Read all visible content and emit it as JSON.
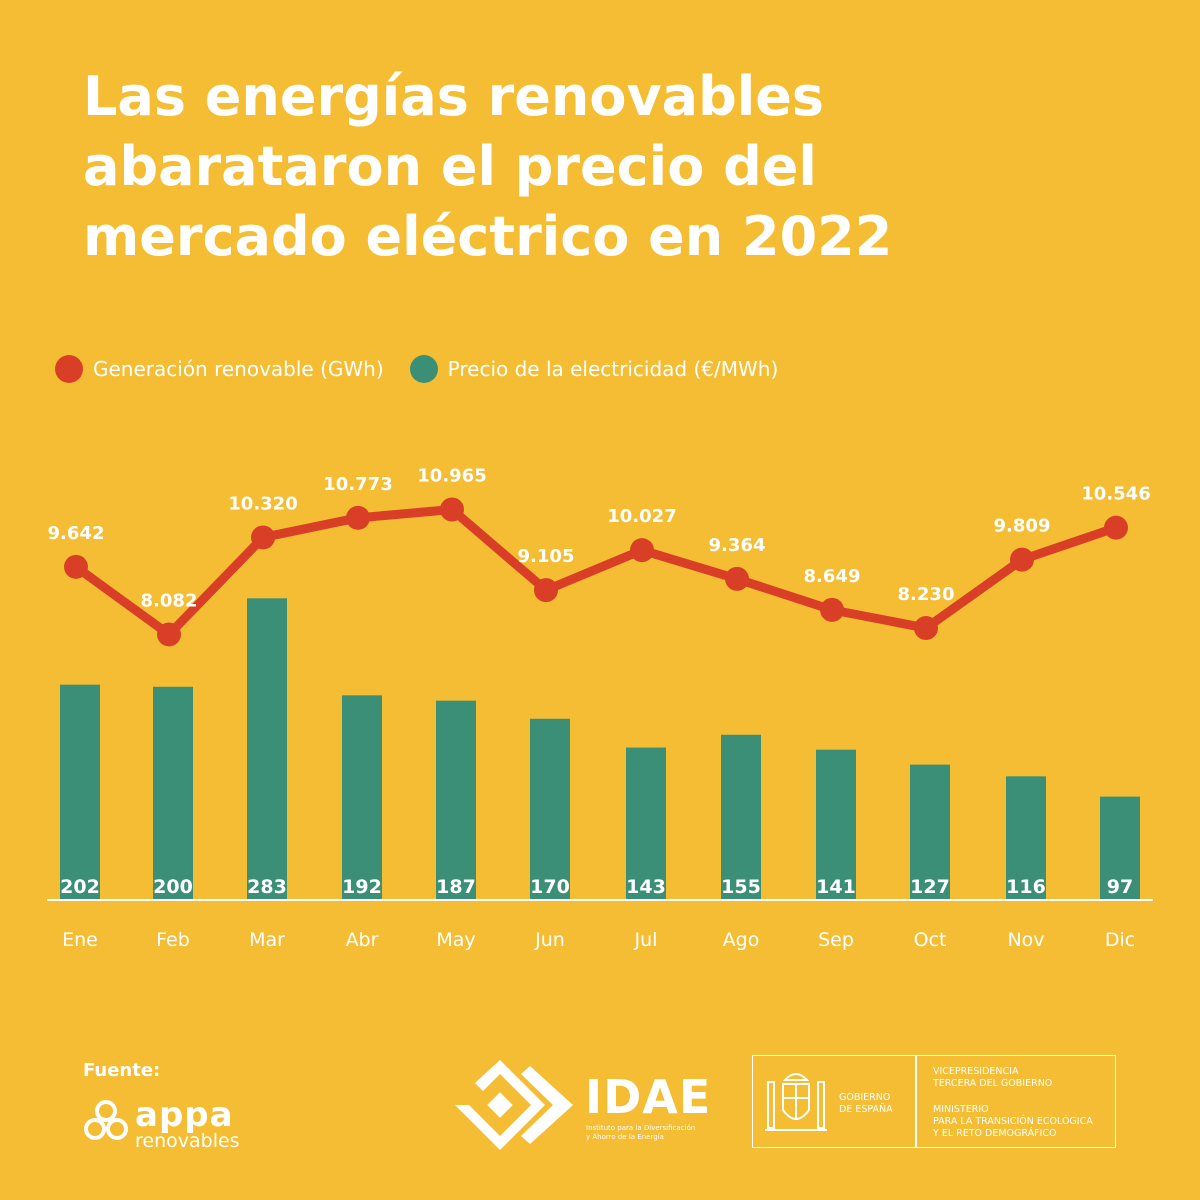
{
  "title_lines": [
    "Las energías renovables",
    "abarataron el precio del",
    "mercado eléctrico en 2022"
  ],
  "colors": {
    "background": "#F5BD34",
    "line": "#D93F27",
    "bars": "#3B8F77",
    "text": "#ffffff"
  },
  "chart_data": {
    "type": "bar+line",
    "categories": [
      "Ene",
      "Feb",
      "Mar",
      "Abr",
      "May",
      "Jun",
      "Jul",
      "Ago",
      "Sep",
      "Oct",
      "Nov",
      "Dic"
    ],
    "series": [
      {
        "name": "Generación renovable (GWh)",
        "type": "line",
        "values": [
          9642,
          8082,
          10320,
          10773,
          10965,
          9105,
          10027,
          9364,
          8649,
          8230,
          9809,
          10546
        ],
        "labels": [
          "9.642",
          "8.082",
          "10.320",
          "10.773",
          "10.965",
          "9.105",
          "10.027",
          "9.364",
          "8.649",
          "8.230",
          "9.809",
          "10.546"
        ]
      },
      {
        "name": "Precio de la electricidad (€/MWh)",
        "type": "bar",
        "values": [
          202,
          200,
          283,
          192,
          187,
          170,
          143,
          155,
          141,
          127,
          116,
          97
        ],
        "labels": [
          "202",
          "200",
          "283",
          "192",
          "187",
          "170",
          "143",
          "155",
          "141",
          "127",
          "116",
          "97"
        ]
      }
    ],
    "legend": "top-left",
    "grid": false
  },
  "footer": {
    "source_label": "Fuente:",
    "appa_name": "appa",
    "appa_sub": "renovables",
    "idae_name": "IDAE",
    "idae_sub_1": "Instituto para la Diversificación",
    "idae_sub_2": "y Ahorro de la Energía",
    "gov_1": "GOBIERNO",
    "gov_2": "DE ESPAÑA",
    "vice_1": "VICEPRESIDENCIA",
    "vice_2": "TERCERA DEL GOBIERNO",
    "min_1": "MINISTERIO",
    "min_2": "PARA LA TRANSICIÓN ECOLÓGICA",
    "min_3": "Y EL RETO DEMOGRÁFICO"
  }
}
